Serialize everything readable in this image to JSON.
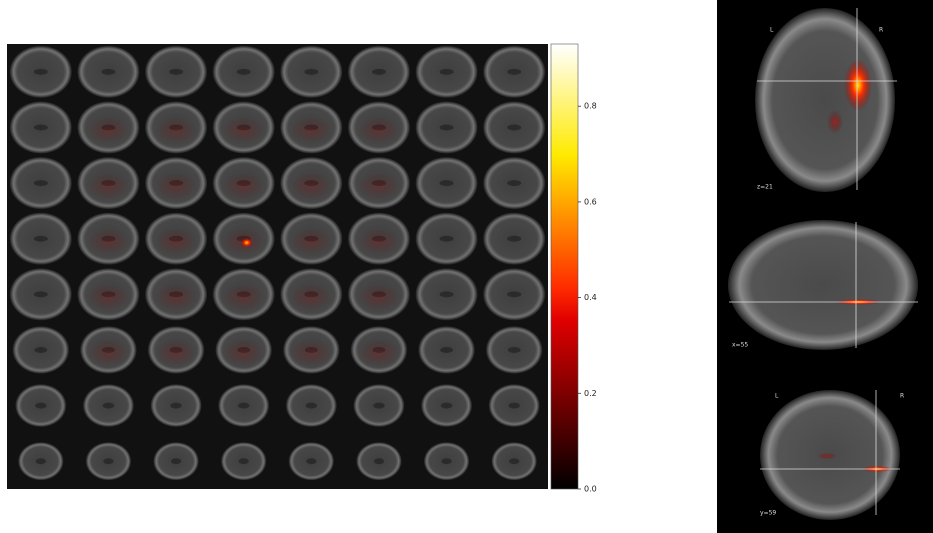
{
  "colorbar": {
    "lim": [
      0,
      0.93
    ],
    "ticks": [
      {
        "value": 0,
        "label": "0.0"
      },
      0.2,
      0.4,
      0.6,
      0.8
    ]
  },
  "panels": [
    {
      "labels": [
        "L",
        "R"
      ],
      "coord": "z=21"
    },
    {
      "coord": "x=55"
    },
    {
      "labels": [
        "L",
        "R"
      ],
      "coord": "y=59"
    }
  ]
}
